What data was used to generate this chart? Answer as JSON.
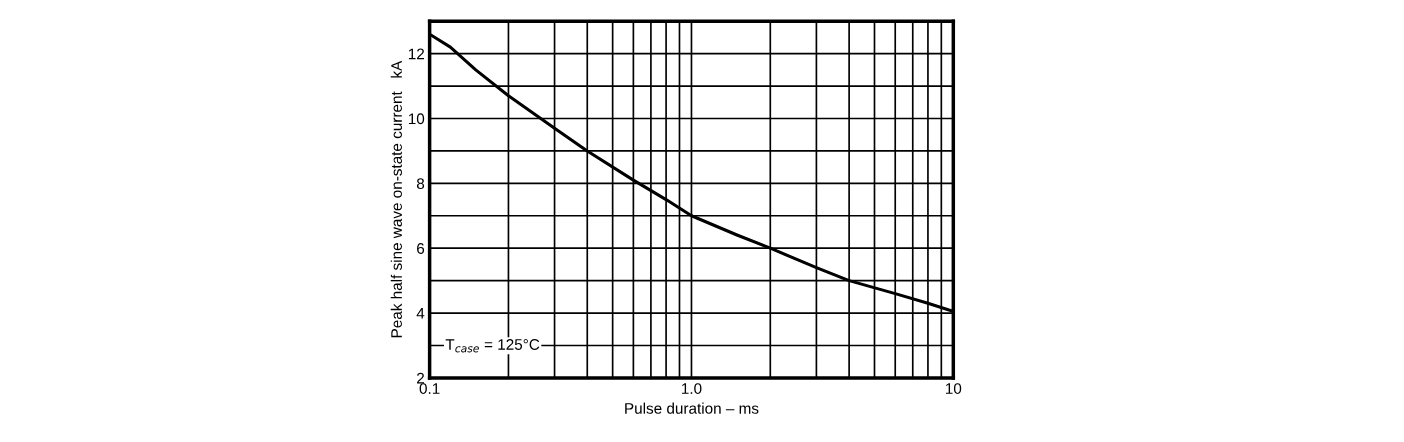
{
  "chart_data": {
    "type": "line",
    "xlabel": "Pulse duration – ms",
    "ylabel": "Peak half sine wave on-state current   kA",
    "annotations": [
      "T$_{case}$ = 125°C"
    ],
    "log": "x",
    "grid": true,
    "marker": "none",
    "line_style": "solid",
    "xlim": [
      0.1,
      10
    ],
    "ylim": [
      2,
      13
    ],
    "xticks": [
      {
        "value": 0.1,
        "label": "0.1"
      },
      {
        "value": 0.2,
        "label": null
      },
      {
        "value": 0.3,
        "label": null
      },
      {
        "value": 0.4,
        "label": null
      },
      {
        "value": 0.5,
        "label": null
      },
      {
        "value": 0.6,
        "label": null
      },
      {
        "value": 0.7,
        "label": null
      },
      {
        "value": 0.8,
        "label": null
      },
      {
        "value": 0.9,
        "label": null
      },
      {
        "value": 1,
        "label": "1.0"
      },
      {
        "value": 2,
        "label": null
      },
      {
        "value": 3,
        "label": null
      },
      {
        "value": 4,
        "label": null
      },
      {
        "value": 5,
        "label": null
      },
      {
        "value": 6,
        "label": null
      },
      {
        "value": 7,
        "label": null
      },
      {
        "value": 8,
        "label": null
      },
      {
        "value": 9,
        "label": null
      },
      {
        "value": 10,
        "label": "10"
      }
    ],
    "yticks": [
      2,
      {
        "value": 3,
        "label": null
      },
      4,
      {
        "value": 5,
        "label": null
      },
      6,
      {
        "value": 7,
        "label": null
      },
      8,
      {
        "value": 9,
        "label": null
      },
      10,
      {
        "value": 11,
        "label": null
      },
      12,
      {
        "value": 13,
        "label": null
      }
    ],
    "series": [
      {
        "color": "#000000",
        "x": [
          0.1,
          0.12,
          0.15,
          0.2,
          0.3,
          0.4,
          0.6,
          0.8,
          1.0,
          1.5,
          2.0,
          3.0,
          4.0,
          6.0,
          8.0,
          10.0
        ],
        "values": [
          12.6,
          12.2,
          11.5,
          10.7,
          9.7,
          9.0,
          8.1,
          7.5,
          7.0,
          6.4,
          6.0,
          5.4,
          5.0,
          4.6,
          4.3,
          4.05
        ]
      }
    ]
  }
}
